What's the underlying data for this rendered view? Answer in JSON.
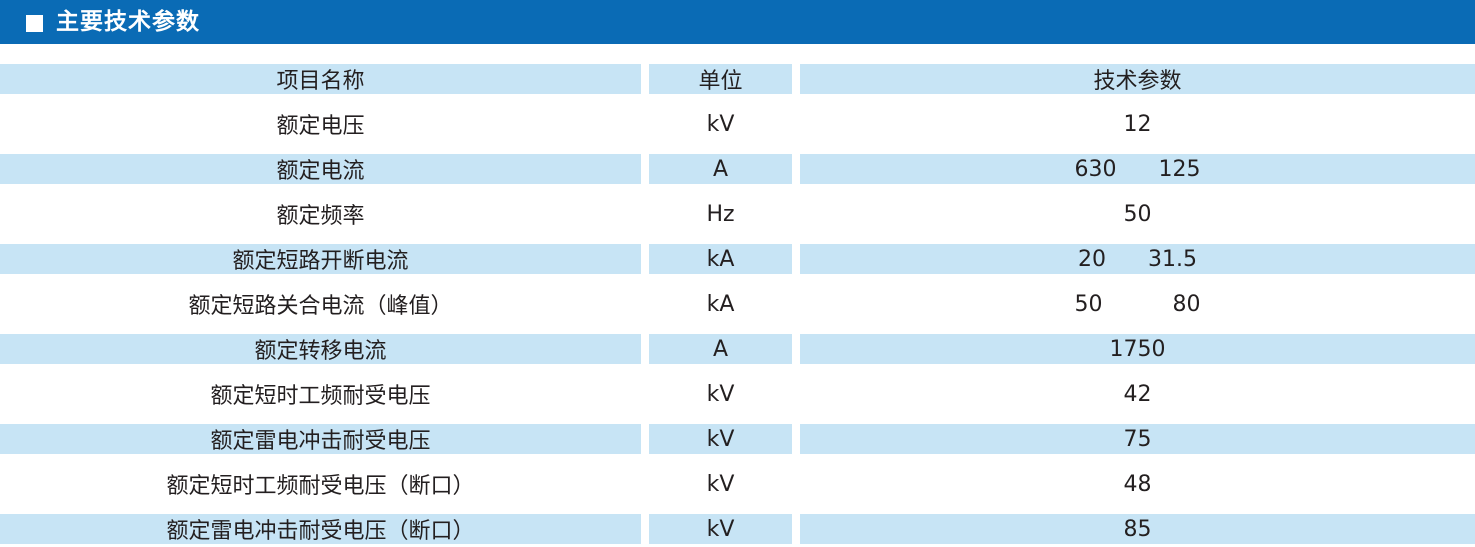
{
  "header": {
    "title": "主要技术参数",
    "color": "#0a6bb5"
  },
  "table": {
    "row_shade_color": "#c7e4f5",
    "columns": [
      "项目名称",
      "单位",
      "技术参数"
    ],
    "rows": [
      {
        "name": "额定电压",
        "unit": "kV",
        "value": "12"
      },
      {
        "name": "额定电流",
        "unit": "A",
        "value": "630      125"
      },
      {
        "name": "额定频率",
        "unit": "Hz",
        "value": "50"
      },
      {
        "name": "额定短路开断电流",
        "unit": "kA",
        "value": "20      31.5"
      },
      {
        "name": "额定短路关合电流（峰值）",
        "unit": "kA",
        "value": "50          80"
      },
      {
        "name": "额定转移电流",
        "unit": "A",
        "value": "1750"
      },
      {
        "name": "额定短时工频耐受电压",
        "unit": "kV",
        "value": "42"
      },
      {
        "name": "额定雷电冲击耐受电压",
        "unit": "kV",
        "value": "75"
      },
      {
        "name": "额定短时工频耐受电压（断口）",
        "unit": "kV",
        "value": "48"
      },
      {
        "name": "额定雷电冲击耐受电压（断口）",
        "unit": "kV",
        "value": "85"
      }
    ]
  }
}
